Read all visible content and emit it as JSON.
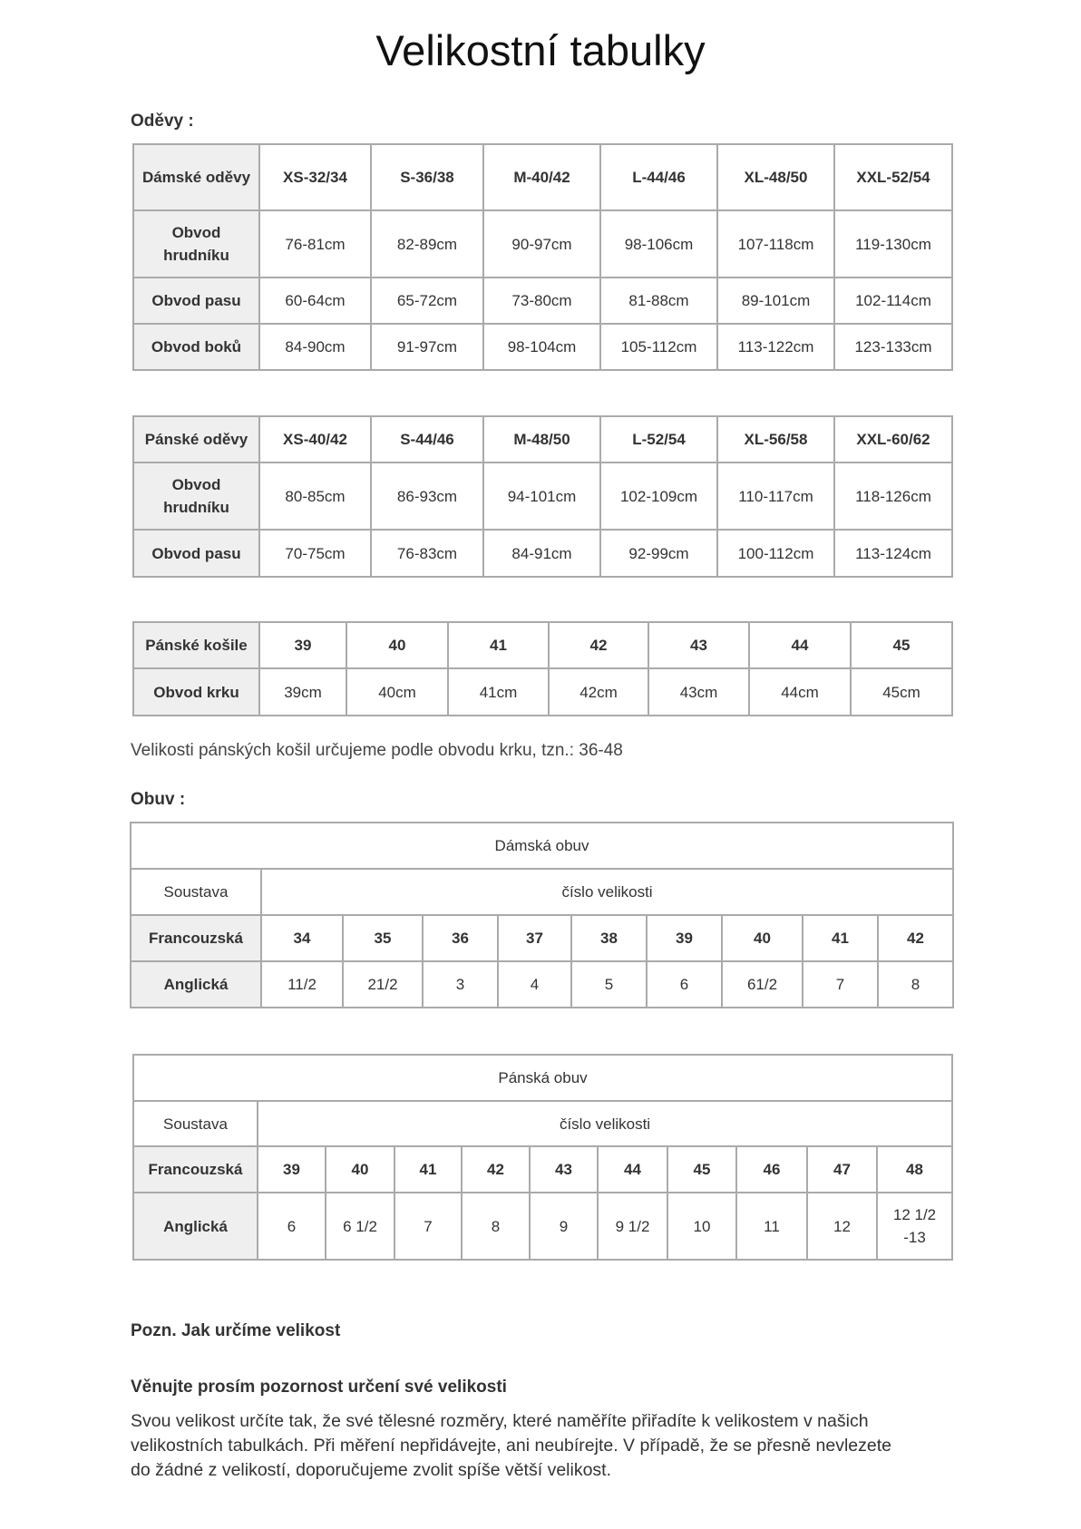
{
  "title": "Velikostní tabulky",
  "sections": {
    "clothing": "Oděvy :",
    "shoes": "Obuv :"
  },
  "womens_clothing": {
    "rows": [
      [
        "Dámské oděvy",
        "XS-32/34",
        "S-36/38",
        "M-40/42",
        "L-44/46",
        "XL-48/50",
        "XXL-52/54"
      ],
      [
        "Obvod hrudníku",
        "76-81cm",
        "82-89cm",
        "90-97cm",
        "98-106cm",
        "107-118cm",
        "119-130cm"
      ],
      [
        "Obvod pasu",
        "60-64cm",
        "65-72cm",
        "73-80cm",
        "81-88cm",
        "89-101cm",
        "102-114cm"
      ],
      [
        "Obvod boků",
        "84-90cm",
        "91-97cm",
        "98-104cm",
        "105-112cm",
        "113-122cm",
        "123-133cm"
      ]
    ]
  },
  "mens_clothing": {
    "rows": [
      [
        "Pánské oděvy",
        "XS-40/42",
        "S-44/46",
        "M-48/50",
        "L-52/54",
        "XL-56/58",
        "XXL-60/62"
      ],
      [
        "Obvod hrudníku",
        "80-85cm",
        "86-93cm",
        "94-101cm",
        "102-109cm",
        "110-117cm",
        "118-126cm"
      ],
      [
        "Obvod pasu",
        "70-75cm",
        "76-83cm",
        "84-91cm",
        "92-99cm",
        "100-112cm",
        "113-124cm"
      ]
    ]
  },
  "mens_shirts": {
    "rows": [
      [
        "Pánské košile",
        "39",
        "40",
        "41",
        "42",
        "43",
        "44",
        "45"
      ],
      [
        "Obvod krku",
        "39cm",
        "40cm",
        "41cm",
        "42cm",
        "43cm",
        "44cm",
        "45cm"
      ]
    ]
  },
  "shirts_note": "Velikosti pánských košil určujeme podle obvodu krku, tzn.: 36-48",
  "womens_shoes": {
    "title": "Dámská obuv",
    "system_label": "Soustava",
    "size_label": "číslo velikosti",
    "rows": [
      [
        "Francouzská",
        "34",
        "35",
        "36",
        "37",
        "38",
        "39",
        "40",
        "41",
        "42"
      ],
      [
        "Anglická",
        "11/2",
        "21/2",
        "3",
        "4",
        "5",
        "6",
        "61/2",
        "7",
        "8"
      ]
    ]
  },
  "mens_shoes": {
    "title": "Pánská obuv",
    "system_label": "Soustava",
    "size_label": "číslo velikosti",
    "rows": [
      [
        "Francouzská",
        "39",
        "40",
        "41",
        "42",
        "43",
        "44",
        "45",
        "46",
        "47",
        "48"
      ],
      [
        "Anglická",
        "6",
        "6 1/2",
        "7",
        "8",
        "9",
        "9 1/2",
        "10",
        "11",
        "12",
        "12 1/2 -13"
      ]
    ]
  },
  "footer": {
    "note_heading": "Pozn. Jak určíme velikost",
    "attention_heading": "Věnujte prosím pozornost určení své velikosti",
    "paragraph_lines": [
      "Svou velikost určíte tak, že své tělesné rozměry, které naměříte přiřadíte k velikostem v našich",
      "velikostních tabulkách. Při měření nepřidávejte, ani neubírejte. V případě, že se přesně nevlezete",
      "do žádné z velikostí, doporučujeme zvolit spíše větší velikost."
    ]
  }
}
